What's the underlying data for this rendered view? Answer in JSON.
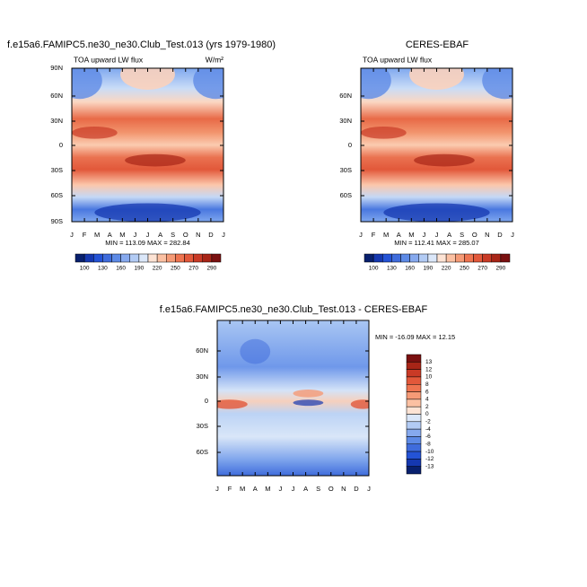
{
  "panels": [
    {
      "title": "f.e15a6.FAMIPC5.ne30_ne30.Club_Test.013 (yrs 1979-1980)",
      "variable": "TOA upward LW flux",
      "units": "W/m²",
      "y_labels": [
        "90N",
        "60N",
        "30N",
        "0",
        "30S",
        "60S",
        "90S"
      ],
      "x_labels": [
        "J",
        "F",
        "M",
        "A",
        "M",
        "J",
        "J",
        "A",
        "S",
        "O",
        "N",
        "D",
        "J"
      ],
      "minmax": "MIN = 113.09 MAX = 282.84",
      "colorbar_labels": [
        "100",
        "130",
        "160",
        "190",
        "220",
        "250",
        "270",
        "290"
      ]
    },
    {
      "title": "CERES-EBAF",
      "variable": "TOA upward LW flux",
      "y_labels": [
        "60N",
        "30N",
        "0",
        "30S",
        "60S"
      ],
      "x_labels": [
        "J",
        "F",
        "M",
        "A",
        "M",
        "J",
        "J",
        "A",
        "S",
        "O",
        "N",
        "D",
        "J"
      ],
      "minmax": "MIN = 112.41 MAX = 285.07",
      "colorbar_labels": [
        "100",
        "130",
        "160",
        "190",
        "220",
        "250",
        "270",
        "290"
      ]
    },
    {
      "title": "f.e15a6.FAMIPC5.ne30_ne30.Club_Test.013 - CERES-EBAF",
      "y_labels": [
        "60N",
        "30N",
        "0",
        "30S",
        "60S"
      ],
      "x_labels": [
        "J",
        "F",
        "M",
        "A",
        "M",
        "J",
        "J",
        "A",
        "S",
        "O",
        "N",
        "D",
        "J"
      ],
      "minmax": "MIN = -16.09 MAX =  12.15",
      "colorbar_labels": [
        "13",
        "12",
        "10",
        "8",
        "6",
        "4",
        "2",
        "0",
        "-2",
        "-4",
        "-6",
        "-8",
        "-10",
        "-12",
        "-13"
      ]
    }
  ]
}
